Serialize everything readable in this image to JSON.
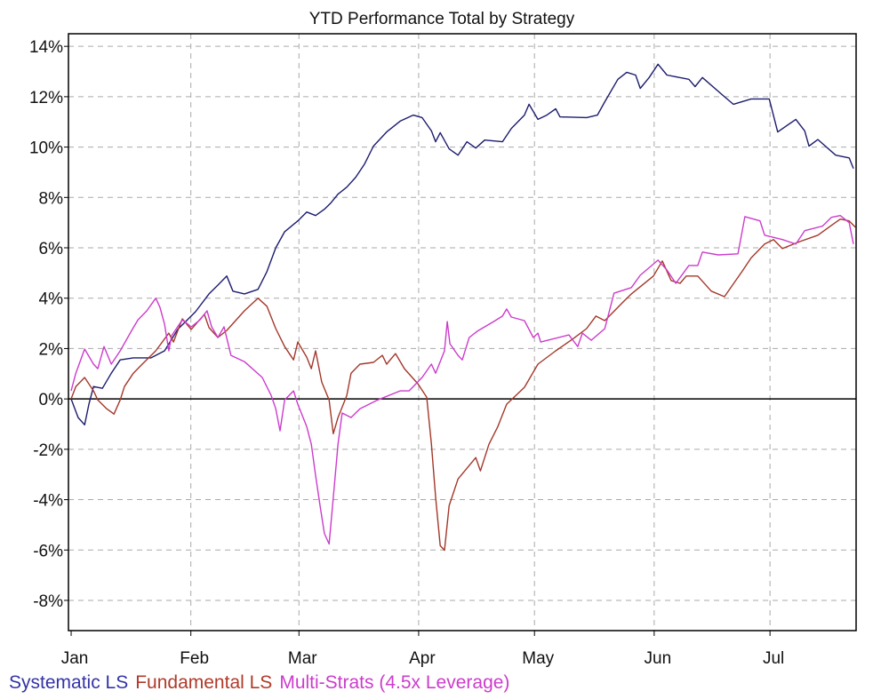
{
  "chart_data": {
    "type": "line",
    "title": "YTD Performance Total by Strategy",
    "xlabel": "",
    "ylabel": "",
    "x_unit": "day of year",
    "xlim": [
      -0.7,
      203.3
    ],
    "ylim": [
      -9.2,
      14.5
    ],
    "grid": true,
    "legend_position": "bottom-left",
    "y_ticks": [
      14,
      12,
      10,
      8,
      6,
      4,
      2,
      0,
      -2,
      -4,
      -6,
      -8
    ],
    "y_tick_labels": [
      "14%",
      "12%",
      "10%",
      "8%",
      "6%",
      "4%",
      "2%",
      "0%",
      "-2%",
      "-4%",
      "-6%",
      "-8%"
    ],
    "x_ticks": [
      0,
      31,
      59,
      90,
      120,
      151,
      181
    ],
    "x_tick_labels": [
      "Jan",
      "Feb",
      "Mar",
      "Apr",
      "May",
      "Jun",
      "Jul"
    ],
    "series": [
      {
        "name": "Systematic LS",
        "color": "#1c1c6e",
        "legend_color": "#3333a8",
        "points": [
          [
            0,
            0
          ],
          [
            1.8,
            -0.74
          ],
          [
            3.5,
            -1.03
          ],
          [
            4.6,
            -0.21
          ],
          [
            5.8,
            0.49
          ],
          [
            8.1,
            0.42
          ],
          [
            10.4,
            1.02
          ],
          [
            12.7,
            1.55
          ],
          [
            16.1,
            1.63
          ],
          [
            20.7,
            1.63
          ],
          [
            24.2,
            1.91
          ],
          [
            27.6,
            2.76
          ],
          [
            29.9,
            3.11
          ],
          [
            32.2,
            3.46
          ],
          [
            35.7,
            4.17
          ],
          [
            38,
            4.52
          ],
          [
            40.3,
            4.88
          ],
          [
            41.9,
            4.28
          ],
          [
            44.9,
            4.17
          ],
          [
            48.4,
            4.35
          ],
          [
            50.7,
            5.05
          ],
          [
            53,
            6.0
          ],
          [
            55.3,
            6.64
          ],
          [
            58.7,
            7.07
          ],
          [
            61,
            7.42
          ],
          [
            63.3,
            7.28
          ],
          [
            65.6,
            7.53
          ],
          [
            67.2,
            7.77
          ],
          [
            69.1,
            8.13
          ],
          [
            71.4,
            8.41
          ],
          [
            73.7,
            8.8
          ],
          [
            76,
            9.33
          ],
          [
            78.3,
            10.04
          ],
          [
            81.7,
            10.6
          ],
          [
            85.2,
            11.03
          ],
          [
            88.6,
            11.27
          ],
          [
            90.9,
            11.17
          ],
          [
            93.3,
            10.64
          ],
          [
            94.4,
            10.21
          ],
          [
            95.6,
            10.57
          ],
          [
            97.9,
            9.93
          ],
          [
            100.2,
            9.68
          ],
          [
            102.5,
            10.21
          ],
          [
            104.8,
            9.96
          ],
          [
            107.1,
            10.28
          ],
          [
            111.7,
            10.21
          ],
          [
            114,
            10.74
          ],
          [
            117.4,
            11.27
          ],
          [
            118.6,
            11.7
          ],
          [
            120.9,
            11.1
          ],
          [
            123.2,
            11.27
          ],
          [
            125.5,
            11.52
          ],
          [
            126.6,
            11.2
          ],
          [
            133.5,
            11.17
          ],
          [
            136.3,
            11.27
          ],
          [
            138.2,
            11.8
          ],
          [
            141.6,
            12.69
          ],
          [
            143.9,
            12.97
          ],
          [
            146.2,
            12.86
          ],
          [
            147.4,
            12.33
          ],
          [
            149.7,
            12.76
          ],
          [
            152,
            13.29
          ],
          [
            154.3,
            12.86
          ],
          [
            160,
            12.69
          ],
          [
            161.6,
            12.4
          ],
          [
            163.5,
            12.76
          ],
          [
            169.2,
            12.0
          ],
          [
            171.5,
            11.7
          ],
          [
            176.1,
            11.91
          ],
          [
            180.8,
            11.91
          ],
          [
            183,
            10.6
          ],
          [
            187.7,
            11.1
          ],
          [
            190,
            10.64
          ],
          [
            191.1,
            10.04
          ],
          [
            193.4,
            10.3
          ],
          [
            198,
            9.68
          ],
          [
            201.5,
            9.57
          ],
          [
            202.6,
            9.15
          ]
        ]
      },
      {
        "name": "Fundamental LS",
        "color": "#a3382a",
        "legend_color": "#b03a2a",
        "points": [
          [
            0,
            0
          ],
          [
            1.2,
            0.49
          ],
          [
            3.5,
            0.85
          ],
          [
            5.8,
            0.32
          ],
          [
            6.9,
            -0.04
          ],
          [
            9.2,
            -0.39
          ],
          [
            11.1,
            -0.6
          ],
          [
            12.7,
            -0.04
          ],
          [
            13.8,
            0.49
          ],
          [
            16.1,
            1.02
          ],
          [
            18.4,
            1.38
          ],
          [
            21.9,
            1.91
          ],
          [
            25.3,
            2.61
          ],
          [
            26.5,
            2.26
          ],
          [
            28.8,
            3.18
          ],
          [
            31.1,
            2.76
          ],
          [
            34.5,
            3.36
          ],
          [
            35.7,
            2.83
          ],
          [
            38,
            2.44
          ],
          [
            40.3,
            2.72
          ],
          [
            44.9,
            3.5
          ],
          [
            48.4,
            4.0
          ],
          [
            50.7,
            3.68
          ],
          [
            53,
            2.79
          ],
          [
            55.3,
            2.08
          ],
          [
            57.6,
            1.55
          ],
          [
            58.7,
            2.26
          ],
          [
            61,
            1.66
          ],
          [
            62.2,
            1.2
          ],
          [
            63.3,
            1.91
          ],
          [
            64.9,
            0.67
          ],
          [
            66.8,
            -0.04
          ],
          [
            67.9,
            -1.38
          ],
          [
            69.1,
            -0.74
          ],
          [
            71.4,
            0.14
          ],
          [
            72.5,
            1.02
          ],
          [
            74.8,
            1.38
          ],
          [
            78.3,
            1.45
          ],
          [
            80.6,
            1.73
          ],
          [
            81.7,
            1.38
          ],
          [
            84,
            1.8
          ],
          [
            86.3,
            1.2
          ],
          [
            89.8,
            0.6
          ],
          [
            92.1,
            0.07
          ],
          [
            93.3,
            -1.8
          ],
          [
            94.4,
            -3.9
          ],
          [
            95.6,
            -5.83
          ],
          [
            96.7,
            -6.01
          ],
          [
            97.9,
            -4.24
          ],
          [
            100.2,
            -3.18
          ],
          [
            104.8,
            -2.33
          ],
          [
            106,
            -2.86
          ],
          [
            108.2,
            -1.8
          ],
          [
            110.5,
            -1.1
          ],
          [
            112.8,
            -0.21
          ],
          [
            117.4,
            0.46
          ],
          [
            120.9,
            1.38
          ],
          [
            125.5,
            1.91
          ],
          [
            130.1,
            2.4
          ],
          [
            133.5,
            2.79
          ],
          [
            135.9,
            3.29
          ],
          [
            138.2,
            3.11
          ],
          [
            142.8,
            3.82
          ],
          [
            145.1,
            4.17
          ],
          [
            150.8,
            4.88
          ],
          [
            153.1,
            5.48
          ],
          [
            155.4,
            4.7
          ],
          [
            157.7,
            4.59
          ],
          [
            159.3,
            4.88
          ],
          [
            162.3,
            4.88
          ],
          [
            165.8,
            4.28
          ],
          [
            169.2,
            4.06
          ],
          [
            173.8,
            5.07
          ],
          [
            176.1,
            5.6
          ],
          [
            179.6,
            6.15
          ],
          [
            181.9,
            6.33
          ],
          [
            184.2,
            5.97
          ],
          [
            188.8,
            6.25
          ],
          [
            193.4,
            6.5
          ],
          [
            196.9,
            6.89
          ],
          [
            199.2,
            7.14
          ],
          [
            201.5,
            7.07
          ],
          [
            203.1,
            6.82
          ]
        ]
      },
      {
        "name": "Multi-Strats (4.5x Leverage)",
        "color": "#cc3ccc",
        "legend_color": "#cc3ccc",
        "points": [
          [
            0,
            0.32
          ],
          [
            1.2,
            1.02
          ],
          [
            3.5,
            1.98
          ],
          [
            5.8,
            1.38
          ],
          [
            6.9,
            1.2
          ],
          [
            8.5,
            2.08
          ],
          [
            10.4,
            1.38
          ],
          [
            12.7,
            1.91
          ],
          [
            15.7,
            2.72
          ],
          [
            17.3,
            3.14
          ],
          [
            19.6,
            3.5
          ],
          [
            21.9,
            4.0
          ],
          [
            23,
            3.64
          ],
          [
            24.2,
            2.97
          ],
          [
            25.3,
            1.91
          ],
          [
            26,
            2.51
          ],
          [
            28.8,
            3.14
          ],
          [
            31.1,
            2.86
          ],
          [
            33.4,
            3.14
          ],
          [
            35.2,
            3.5
          ],
          [
            36.4,
            2.86
          ],
          [
            38,
            2.44
          ],
          [
            39.6,
            2.86
          ],
          [
            41.4,
            1.73
          ],
          [
            44.9,
            1.48
          ],
          [
            49.5,
            0.85
          ],
          [
            51.8,
            0.14
          ],
          [
            53,
            -0.39
          ],
          [
            54.1,
            -1.27
          ],
          [
            55.3,
            -0.04
          ],
          [
            57.6,
            0.32
          ],
          [
            58.7,
            -0.21
          ],
          [
            61,
            -1.1
          ],
          [
            62.2,
            -1.8
          ],
          [
            63.3,
            -3.04
          ],
          [
            64.5,
            -4.28
          ],
          [
            65.6,
            -5.34
          ],
          [
            66.8,
            -5.76
          ],
          [
            67.9,
            -3.92
          ],
          [
            69.1,
            -1.8
          ],
          [
            70.2,
            -0.56
          ],
          [
            72.5,
            -0.74
          ],
          [
            74.8,
            -0.39
          ],
          [
            79.4,
            -0.04
          ],
          [
            85.2,
            0.32
          ],
          [
            87.5,
            0.32
          ],
          [
            90.9,
            0.85
          ],
          [
            93.3,
            1.38
          ],
          [
            94.4,
            1.02
          ],
          [
            96.7,
            1.91
          ],
          [
            97.4,
            3.07
          ],
          [
            98.1,
            2.19
          ],
          [
            100.2,
            1.73
          ],
          [
            101.3,
            1.55
          ],
          [
            103.1,
            2.44
          ],
          [
            105.2,
            2.69
          ],
          [
            109.4,
            3.07
          ],
          [
            111.7,
            3.29
          ],
          [
            112.8,
            3.57
          ],
          [
            114,
            3.25
          ],
          [
            117.4,
            3.11
          ],
          [
            119.7,
            2.44
          ],
          [
            120.9,
            2.61
          ],
          [
            121.6,
            2.26
          ],
          [
            128.9,
            2.54
          ],
          [
            131.2,
            2.08
          ],
          [
            132.4,
            2.61
          ],
          [
            134.7,
            2.33
          ],
          [
            138.2,
            2.79
          ],
          [
            140.6,
            4.2
          ],
          [
            145.1,
            4.42
          ],
          [
            147.4,
            4.91
          ],
          [
            152,
            5.51
          ],
          [
            154.3,
            5.12
          ],
          [
            156.6,
            4.59
          ],
          [
            160,
            5.3
          ],
          [
            162.3,
            5.3
          ],
          [
            163.5,
            5.83
          ],
          [
            167.6,
            5.72
          ],
          [
            172.7,
            5.76
          ],
          [
            174.5,
            7.24
          ],
          [
            178.4,
            7.07
          ],
          [
            179.6,
            6.5
          ],
          [
            184.2,
            6.33
          ],
          [
            187.7,
            6.15
          ],
          [
            190,
            6.68
          ],
          [
            194.6,
            6.86
          ],
          [
            196.9,
            7.21
          ],
          [
            199.2,
            7.28
          ],
          [
            201.5,
            7.0
          ],
          [
            202.6,
            6.15
          ]
        ]
      }
    ]
  }
}
